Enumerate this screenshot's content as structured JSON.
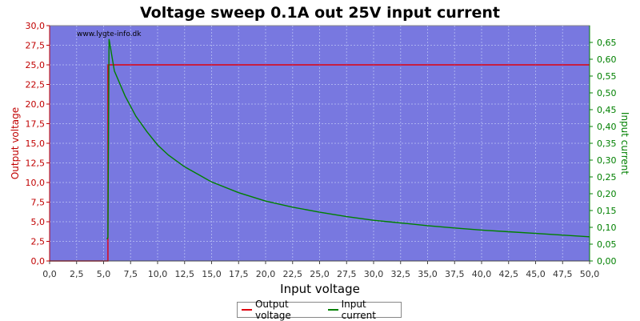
{
  "chart_data": {
    "type": "line",
    "title": "Voltage sweep 0.1A out 25V input current",
    "xlabel": "Input voltage",
    "ylabel_left": "Output voltage",
    "ylabel_right": "Input current",
    "watermark": "www.lygte-info.dk",
    "xlim": [
      0,
      50
    ],
    "ylim_left": [
      0,
      30
    ],
    "ylim_right": [
      0,
      0.7
    ],
    "x_ticks": [
      "0,0",
      "2,5",
      "5,0",
      "7,5",
      "10,0",
      "12,5",
      "15,0",
      "17,5",
      "20,0",
      "22,5",
      "25,0",
      "27,5",
      "30,0",
      "32,5",
      "35,0",
      "37,5",
      "40,0",
      "42,5",
      "45,0",
      "47,5",
      "50,0"
    ],
    "y_left_ticks": [
      "0,0",
      "2,5",
      "5,0",
      "7,5",
      "10,0",
      "12,5",
      "15,0",
      "17,5",
      "20,0",
      "22,5",
      "25,0",
      "27,5",
      "30,0"
    ],
    "y_right_ticks": [
      "0,00",
      "0,05",
      "0,10",
      "0,15",
      "0,20",
      "0,25",
      "0,30",
      "0,35",
      "0,40",
      "0,45",
      "0,50",
      "0,55",
      "0,60",
      "0,65"
    ],
    "grid": true,
    "legend_position": "bottom",
    "series": [
      {
        "name": "Output voltage",
        "axis": "left",
        "color": "#e0000e",
        "points": [
          [
            0,
            0
          ],
          [
            5.3,
            0
          ],
          [
            5.4,
            0
          ],
          [
            5.4,
            25.0
          ],
          [
            50,
            25.0
          ]
        ]
      },
      {
        "name": "Input current",
        "axis": "right",
        "color": "#008000",
        "points": [
          [
            5.3,
            0.065
          ],
          [
            5.4,
            0.07
          ],
          [
            5.5,
            0.66
          ],
          [
            6,
            0.565
          ],
          [
            7,
            0.49
          ],
          [
            8,
            0.43
          ],
          [
            9,
            0.385
          ],
          [
            10,
            0.345
          ],
          [
            11,
            0.315
          ],
          [
            12.5,
            0.28
          ],
          [
            15,
            0.235
          ],
          [
            17.5,
            0.203
          ],
          [
            20,
            0.178
          ],
          [
            22.5,
            0.16
          ],
          [
            25,
            0.145
          ],
          [
            27.5,
            0.132
          ],
          [
            30,
            0.121
          ],
          [
            32.5,
            0.113
          ],
          [
            35,
            0.105
          ],
          [
            37.5,
            0.098
          ],
          [
            40,
            0.092
          ],
          [
            42.5,
            0.087
          ],
          [
            45,
            0.082
          ],
          [
            47.5,
            0.077
          ],
          [
            50,
            0.072
          ]
        ]
      }
    ]
  },
  "colors": {
    "plot_bg": "#7878e0",
    "left_axis": "#c00000",
    "right_axis": "#008000",
    "grid": "#aab0f0"
  }
}
